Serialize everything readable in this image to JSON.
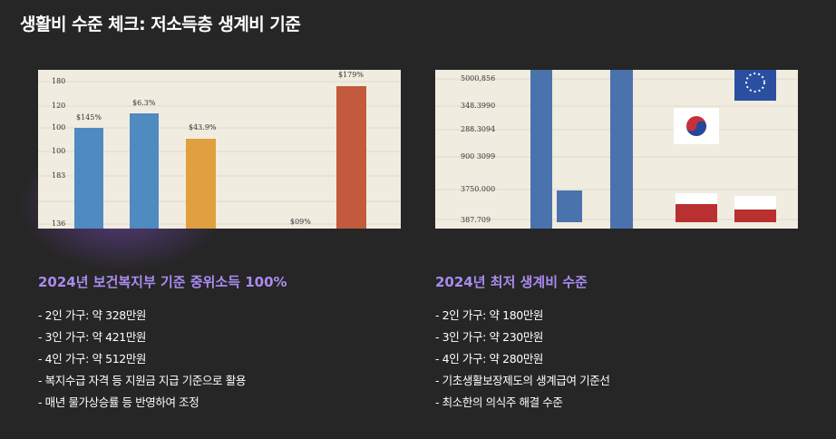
{
  "header": {
    "title": "생활비 수준 체크: 저소득층 생계비 기준"
  },
  "panels": [
    {
      "image": {
        "tick_labels": [
          "180",
          "120",
          "100",
          "100",
          "183",
          "136"
        ],
        "bar_labels": [
          "$145%",
          "$6.3%",
          "$43.9%",
          "$09%",
          "$179%"
        ]
      },
      "heading": "2024년 보건복지부 기준 중위소득 100%",
      "items": [
        "- 2인 가구: 약 328만원",
        "- 3인 가구: 약 421만원",
        "- 4인 가구: 약 512만원",
        "- 복지수급 자격 등 지원금 지급 기준으로 활용",
        "- 매년 물가상승률 등 반영하여 조정"
      ]
    },
    {
      "image": {
        "tick_labels": [
          "5000,856",
          "348.3990",
          "288.3094",
          "900 3099",
          "3750.000",
          "387.709"
        ]
      },
      "heading": "2024년 최저 생계비 수준",
      "items": [
        "- 2인 가구: 약 180만원",
        "- 3인 가구: 약 230만원",
        "- 4인 가구: 약 280만원",
        "- 기초생활보장제도의 생계급여 기준선",
        "- 최소한의 의식주 해결 수준"
      ]
    }
  ]
}
